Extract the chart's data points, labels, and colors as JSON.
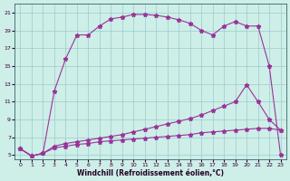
{
  "xlabel": "Windchill (Refroidissement éolien,°C)",
  "background_color": "#ceeee8",
  "line_color": "#993399",
  "grid_color": "#99cccc",
  "xlim": [
    -0.5,
    23.5
  ],
  "ylim": [
    4.5,
    22
  ],
  "yticks": [
    5,
    7,
    9,
    11,
    13,
    15,
    17,
    19,
    21
  ],
  "xticks": [
    0,
    1,
    2,
    3,
    4,
    5,
    6,
    7,
    8,
    9,
    10,
    11,
    12,
    13,
    14,
    15,
    16,
    17,
    18,
    19,
    20,
    21,
    22,
    23
  ],
  "line_top_x": [
    0,
    1,
    2,
    3,
    4,
    5,
    6,
    7,
    8,
    9,
    10,
    11,
    12,
    13,
    14,
    15,
    16,
    17,
    18,
    19,
    20,
    21,
    22,
    23
  ],
  "line_top_y": [
    5.7,
    4.9,
    5.2,
    12.2,
    15.8,
    18.5,
    18.5,
    19.5,
    20.3,
    20.5,
    20.8,
    20.8,
    20.7,
    20.5,
    20.2,
    19.8,
    19.0,
    18.5,
    19.5,
    20.0,
    19.5,
    19.5,
    15.0,
    5.0
  ],
  "line_mid_x": [
    0,
    1,
    2,
    3,
    4,
    5,
    6,
    7,
    8,
    9,
    10,
    11,
    12,
    13,
    14,
    15,
    16,
    17,
    18,
    19,
    20,
    21,
    22,
    23
  ],
  "line_mid_y": [
    5.7,
    4.9,
    5.2,
    6.0,
    6.3,
    6.5,
    6.7,
    6.9,
    7.1,
    7.3,
    7.6,
    7.9,
    8.2,
    8.5,
    8.8,
    9.1,
    9.5,
    10.0,
    10.5,
    11.0,
    12.9,
    11.0,
    9.0,
    7.8
  ],
  "line_bot_x": [
    0,
    1,
    2,
    3,
    4,
    5,
    6,
    7,
    8,
    9,
    10,
    11,
    12,
    13,
    14,
    15,
    16,
    17,
    18,
    19,
    20,
    21,
    22,
    23
  ],
  "line_bot_y": [
    5.7,
    4.9,
    5.2,
    5.8,
    6.0,
    6.2,
    6.3,
    6.5,
    6.6,
    6.7,
    6.8,
    6.9,
    7.0,
    7.1,
    7.2,
    7.3,
    7.5,
    7.6,
    7.7,
    7.8,
    7.9,
    8.0,
    8.0,
    7.8
  ]
}
